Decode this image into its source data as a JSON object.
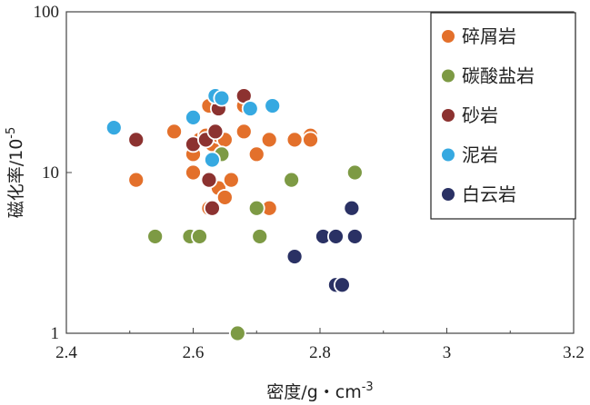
{
  "chart_data": {
    "type": "scatter",
    "xlabel": "密度/g・cm",
    "xlabel_sup": "-3",
    "ylabel": "磁化率/10",
    "ylabel_sup": "-5",
    "xlim": [
      2.4,
      3.2
    ],
    "ylim": [
      1,
      100
    ],
    "yscale": "log",
    "x_ticks": [
      "2.4",
      "2.6",
      "2.8",
      "3",
      "3.2"
    ],
    "y_ticks": [
      "1",
      "10",
      "100"
    ],
    "legend_position": "top-right",
    "series": [
      {
        "name": "碎屑岩",
        "color": "#e3702b",
        "points": [
          [
            2.51,
            9
          ],
          [
            2.57,
            18
          ],
          [
            2.6,
            13
          ],
          [
            2.6,
            10
          ],
          [
            2.61,
            16
          ],
          [
            2.62,
            17
          ],
          [
            2.625,
            26
          ],
          [
            2.63,
            16
          ],
          [
            2.63,
            15
          ],
          [
            2.64,
            17
          ],
          [
            2.65,
            16
          ],
          [
            2.64,
            8
          ],
          [
            2.65,
            7
          ],
          [
            2.66,
            9
          ],
          [
            2.625,
            6
          ],
          [
            2.68,
            18
          ],
          [
            2.7,
            13
          ],
          [
            2.72,
            16
          ],
          [
            2.72,
            6
          ],
          [
            2.76,
            16
          ],
          [
            2.785,
            17
          ],
          [
            2.785,
            16
          ],
          [
            2.68,
            26
          ],
          [
            2.69,
            25
          ]
        ]
      },
      {
        "name": "碳酸盐岩",
        "color": "#7d9a44",
        "points": [
          [
            2.54,
            4
          ],
          [
            2.595,
            4
          ],
          [
            2.61,
            4
          ],
          [
            2.645,
            13
          ],
          [
            2.67,
            1
          ],
          [
            2.7,
            6
          ],
          [
            2.705,
            4
          ],
          [
            2.755,
            9
          ],
          [
            2.855,
            10
          ]
        ]
      },
      {
        "name": "砂岩",
        "color": "#8c3230",
        "points": [
          [
            2.51,
            16
          ],
          [
            2.6,
            15
          ],
          [
            2.62,
            16
          ],
          [
            2.635,
            18
          ],
          [
            2.625,
            9
          ],
          [
            2.63,
            6
          ],
          [
            2.64,
            25
          ],
          [
            2.68,
            30
          ]
        ]
      },
      {
        "name": "泥岩",
        "color": "#36a9e1",
        "points": [
          [
            2.475,
            19
          ],
          [
            2.6,
            22
          ],
          [
            2.63,
            12
          ],
          [
            2.635,
            30
          ],
          [
            2.645,
            29
          ],
          [
            2.69,
            25
          ],
          [
            2.725,
            26
          ]
        ]
      },
      {
        "name": "白云岩",
        "color": "#2a3164",
        "points": [
          [
            2.76,
            3
          ],
          [
            2.805,
            4
          ],
          [
            2.825,
            4
          ],
          [
            2.825,
            2
          ],
          [
            2.835,
            2
          ],
          [
            2.85,
            6
          ],
          [
            2.855,
            4
          ]
        ]
      }
    ]
  }
}
